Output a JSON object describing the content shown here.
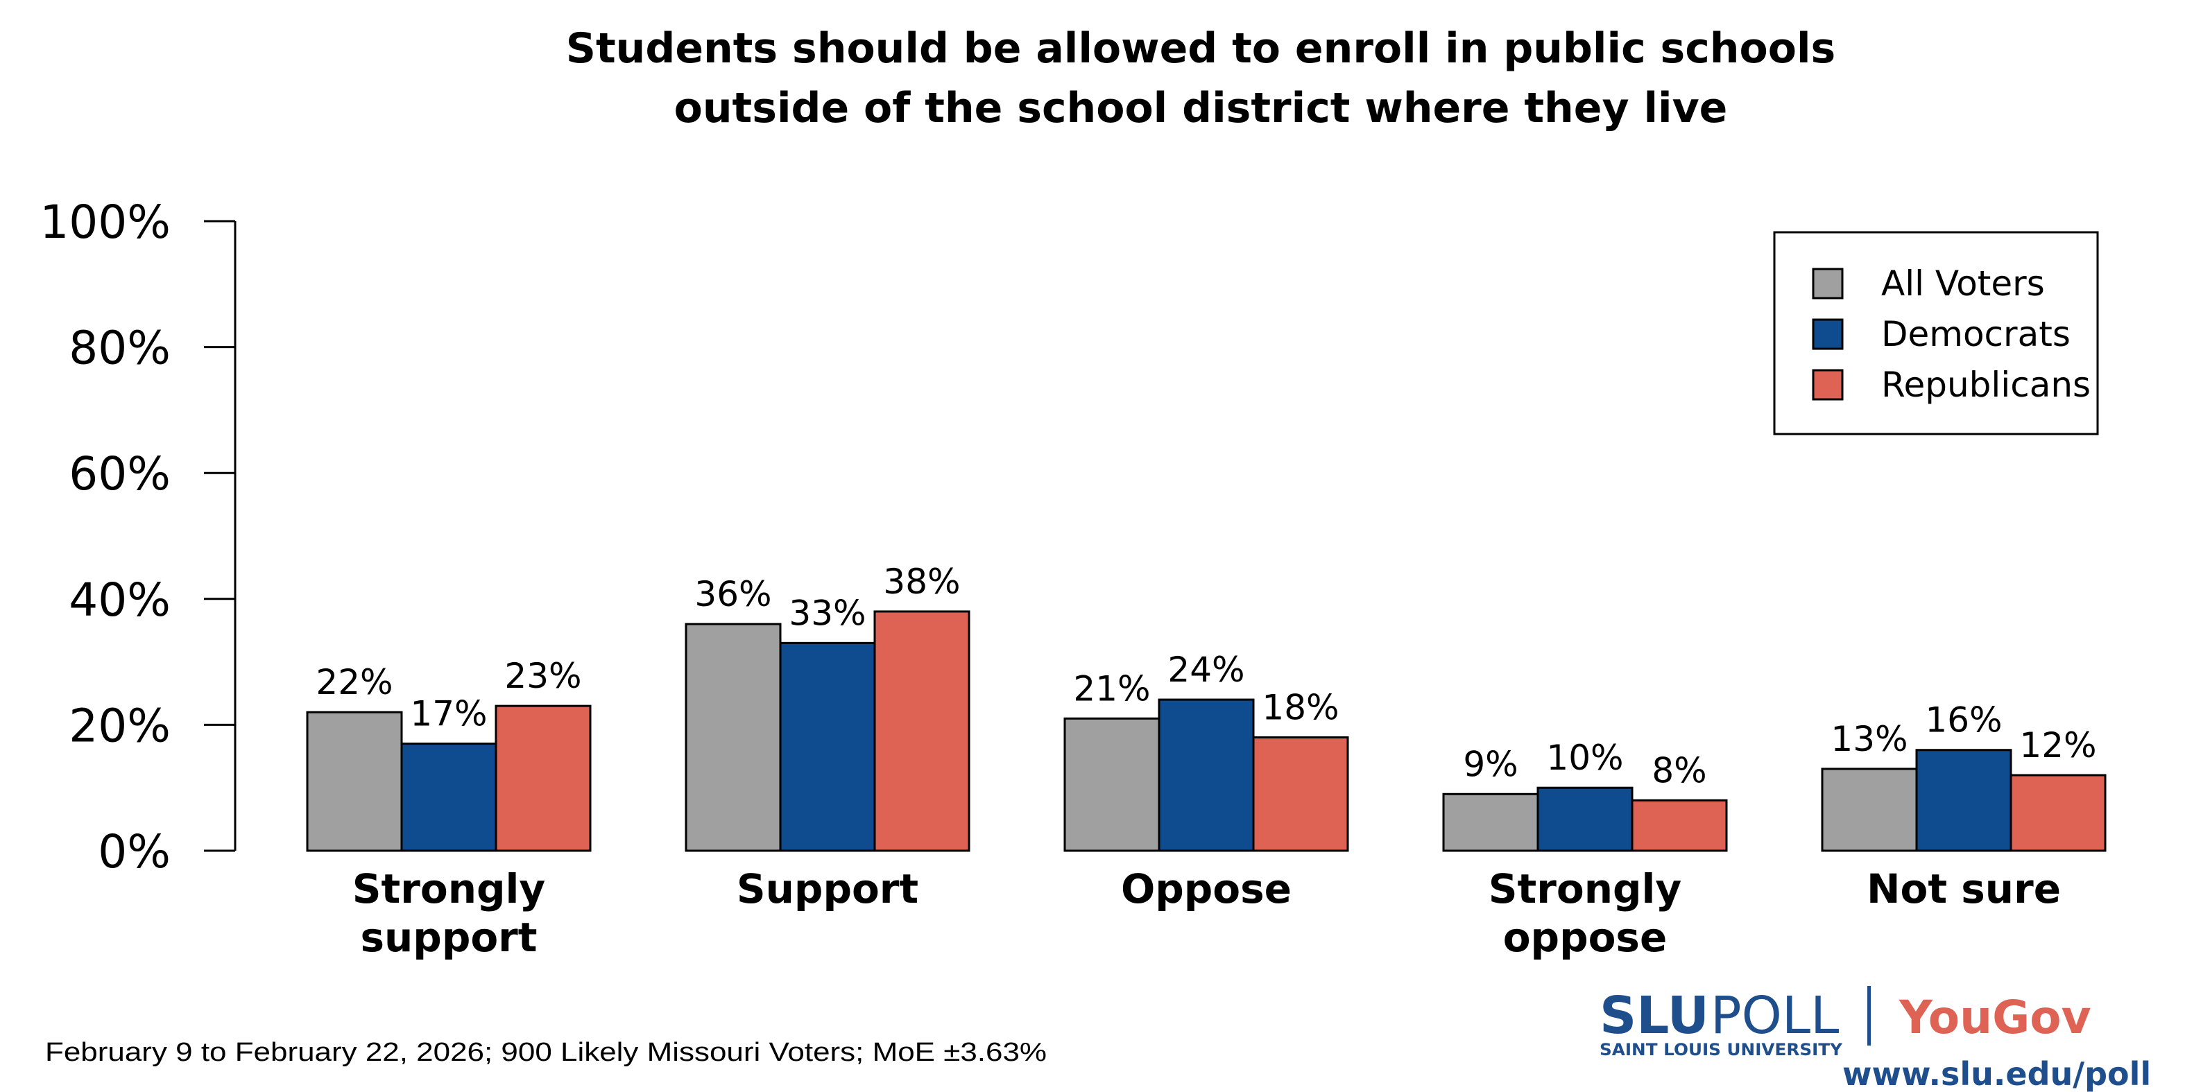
{
  "chart_data": {
    "type": "bar",
    "title": [
      "Students should be allowed to enroll in public schools",
      "outside of the school district where they live"
    ],
    "categories": [
      [
        "Strongly",
        "support"
      ],
      [
        "Support"
      ],
      [
        "Oppose"
      ],
      [
        "Strongly",
        "oppose"
      ],
      [
        "Not sure"
      ]
    ],
    "series": [
      {
        "name": "All Voters",
        "color": "#a0a0a0",
        "values": [
          22,
          36,
          21,
          9,
          13
        ]
      },
      {
        "name": "Democrats",
        "color": "#0e4c8f",
        "values": [
          17,
          33,
          24,
          10,
          16
        ]
      },
      {
        "name": "Republicans",
        "color": "#de6354",
        "values": [
          23,
          38,
          18,
          8,
          12
        ]
      }
    ],
    "ylim": [
      0,
      100
    ],
    "yticks": [
      "0%",
      "20%",
      "40%",
      "60%",
      "80%",
      "100%"
    ],
    "value_suffix": "%",
    "grid": false,
    "legend_position": "top-right"
  },
  "footer": {
    "note": "February 9 to February 22, 2026; 900 Likely Missouri Voters; MoE ±3.63%"
  },
  "logo": {
    "slu_bold": "SLU",
    "slu_poll": "POLL",
    "university": "SAINT LOUIS UNIVERSITY",
    "yougov": "YouGov",
    "url": "www.slu.edu/poll"
  }
}
